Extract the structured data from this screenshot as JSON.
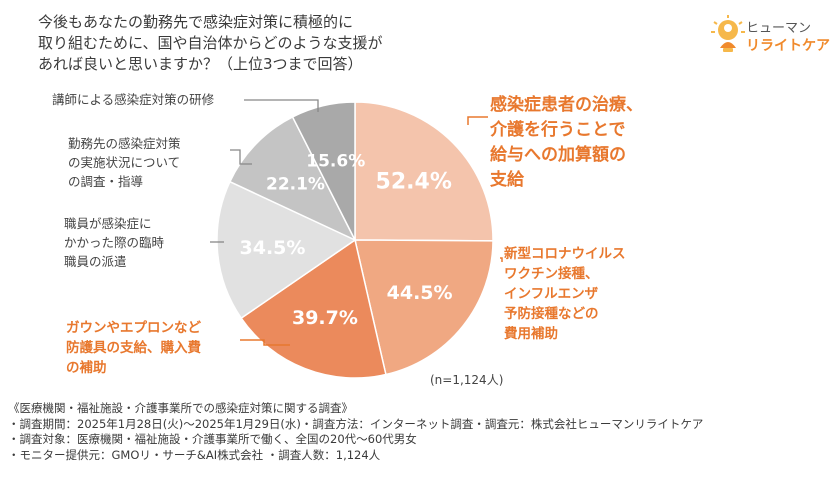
{
  "question": {
    "lines": [
      "今後もあなたの勤務先で感染症対策に積極的に",
      "取り組むために、国や自治体からどのような支援が",
      "あれば良いと思いますか？（上位3つまで回答）"
    ]
  },
  "logo": {
    "line1": "ヒューマン",
    "line2": "リライトケア",
    "icon": "lightbulb-person-icon"
  },
  "chart_data": {
    "type": "pie",
    "title": "今後もあなたの勤務先で感染症対策に積極的に取り組むために、国や自治体からどのような支援があれば良いと思いますか？（上位3つまで回答）",
    "series": [
      {
        "name": "感染症患者の治療、介護を行うことで給与への加算額の支給",
        "value": 52.4,
        "label": "52.4%",
        "color": "#f4c4ac"
      },
      {
        "name": "新型コロナウイルスワクチン接種、インフルエンザ予防接種などの費用補助",
        "value": 44.5,
        "label": "44.5%",
        "color": "#f0a882"
      },
      {
        "name": "ガウンやエプロンなど防護具の支給、購入費の補助",
        "value": 39.7,
        "label": "39.7%",
        "color": "#eb8a5c"
      },
      {
        "name": "職員が感染症にかかった際の臨時職員の派遣",
        "value": 34.5,
        "label": "34.5%",
        "color": "#e1e1e1"
      },
      {
        "name": "勤務先の感染症対策の実施状況についての調査・指導",
        "value": 22.1,
        "label": "22.1%",
        "color": "#c4c4c4"
      },
      {
        "name": "講師による感染症対策の研修",
        "value": 15.6,
        "label": "15.6%",
        "color": "#a9a9a9"
      }
    ],
    "n_note": "(n=1,124人)"
  },
  "labels": {
    "s0": [
      "感染症患者の治療、",
      "介護を行うことで",
      "給与への加算額の",
      "支給"
    ],
    "s1": [
      "新型コロナウイルス",
      "ワクチン接種、",
      "インフルエンザ",
      "予防接種などの",
      "費用補助"
    ],
    "s2": [
      "ガウンやエプロンなど",
      "防護具の支給、購入費",
      "の補助"
    ],
    "s3": [
      "職員が感染症に",
      "かかった際の臨時",
      "職員の派遣"
    ],
    "s4": [
      "勤務先の感染症対策",
      "の実施状況について",
      "の調査・指導"
    ],
    "s5": [
      "講師による感染症対策の研修"
    ]
  },
  "footer": {
    "lines": [
      "《医療機関・福祉施設・介護事業所での感染症対策に関する調査》",
      "・調査期間：2025年1月28日(火)～2025年1月29日(水)・調査方法：インターネット調査・調査元：株式会社ヒューマンリライトケア",
      "・調査対象：医療機関・福祉施設・介護事業所で働く、全国の20代～60代男女",
      "・モニター提供元：GMOリ・サーチ&AI株式会社 ・調査人数：1,124人"
    ]
  }
}
